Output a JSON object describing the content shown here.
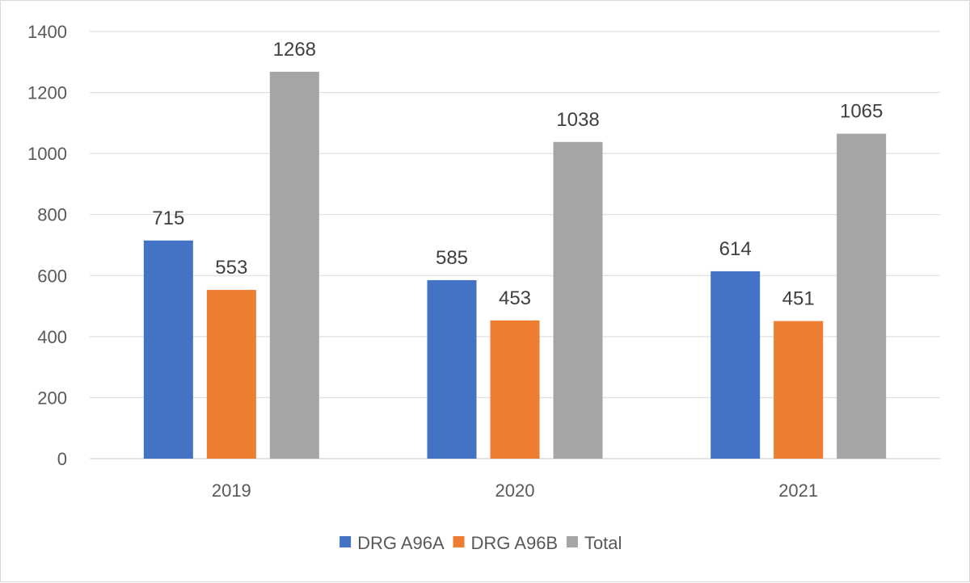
{
  "chart_data": {
    "type": "bar",
    "categories": [
      "2019",
      "2020",
      "2021"
    ],
    "series": [
      {
        "name": "DRG A96A",
        "values": [
          715,
          585,
          614
        ],
        "color": "#4472C4"
      },
      {
        "name": "DRG A96B",
        "values": [
          553,
          453,
          451
        ],
        "color": "#ED7D31"
      },
      {
        "name": "Total",
        "values": [
          1268,
          1038,
          1065
        ],
        "color": "#A5A5A5"
      }
    ],
    "y_ticks": [
      "0",
      "200",
      "400",
      "600",
      "800",
      "1000",
      "1200",
      "1400"
    ],
    "ylim": [
      0,
      1400
    ],
    "grid": true,
    "legend_position": "bottom",
    "gridline_color": "#d9d9d9",
    "axis_line_color": "#d9d9d9"
  }
}
